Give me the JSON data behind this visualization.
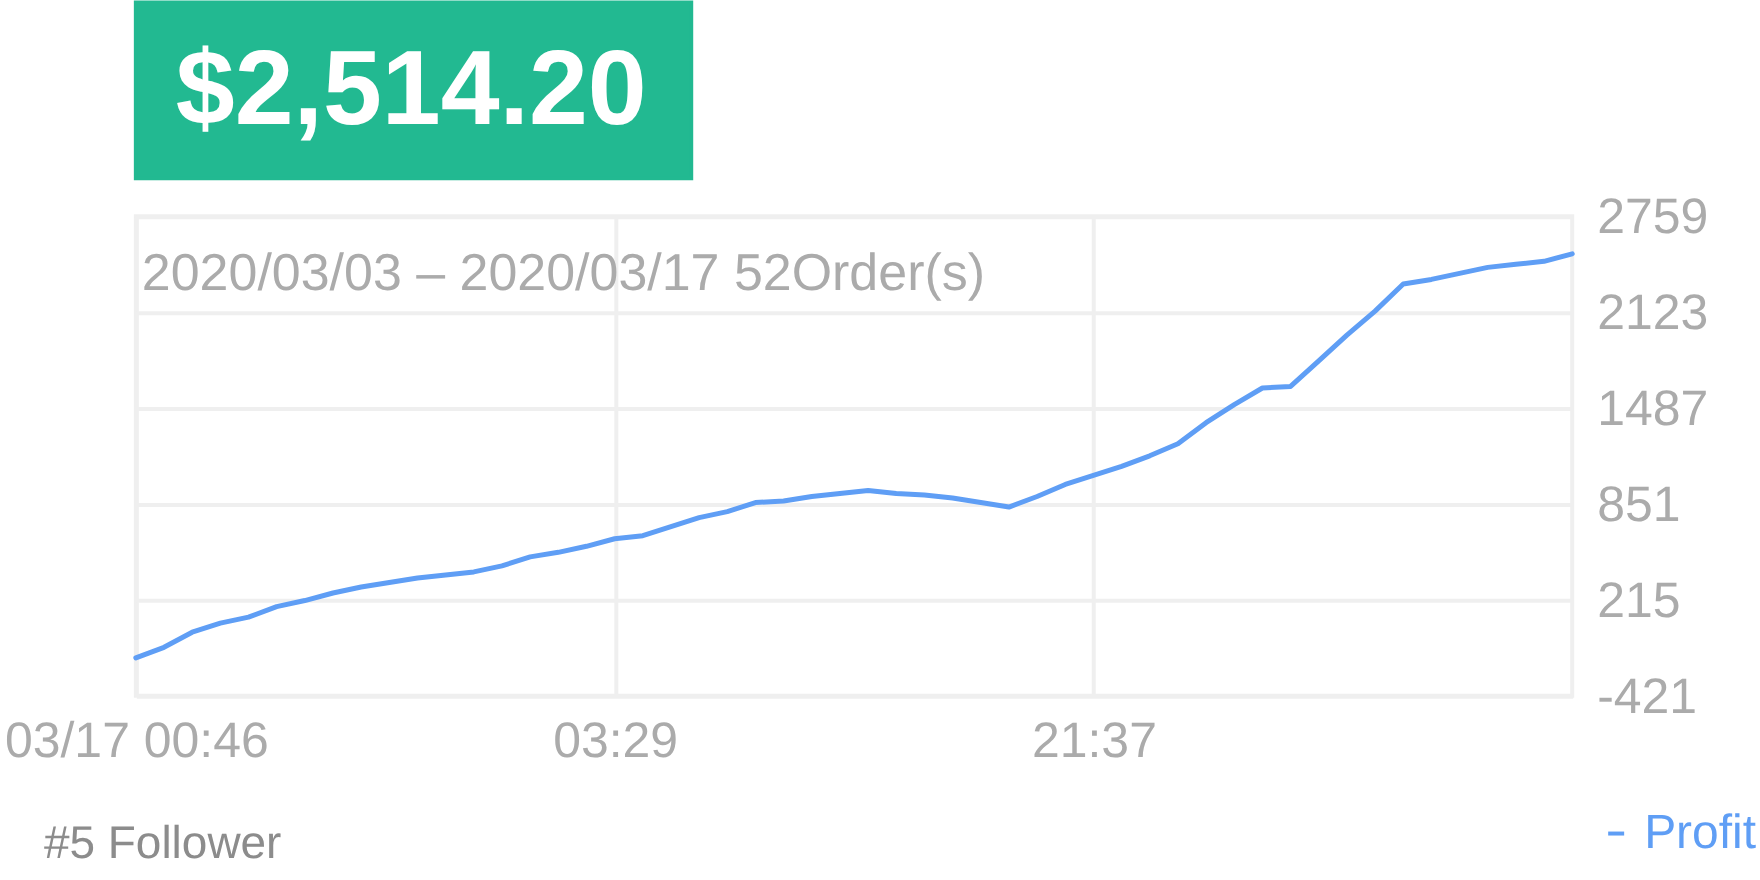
{
  "chart_data": {
    "type": "line",
    "title": "$2,514.20",
    "subtitle": "2020/03/03 – 2020/03/17 52Order(s)",
    "annotations": [
      "#5 Follower"
    ],
    "categories": [
      "03/17 00:46",
      null,
      null,
      null,
      null,
      null,
      null,
      null,
      null,
      null,
      null,
      null,
      null,
      null,
      null,
      null,
      null,
      "03:29",
      null,
      null,
      null,
      null,
      null,
      null,
      null,
      null,
      null,
      null,
      null,
      null,
      null,
      null,
      null,
      null,
      "21:37",
      null,
      null,
      null,
      null,
      null,
      null,
      null,
      null,
      null,
      null,
      null,
      null,
      null,
      null,
      null,
      null,
      null
    ],
    "series": [
      {
        "name": "Profit",
        "color": "#5f9ef5",
        "values": [
          -170,
          -100,
          0,
          60,
          100,
          170,
          210,
          260,
          300,
          330,
          360,
          380,
          400,
          440,
          500,
          530,
          570,
          620,
          640,
          700,
          760,
          800,
          860,
          870,
          900,
          920,
          940,
          920,
          910,
          890,
          860,
          830,
          900,
          980,
          1040,
          1100,
          1170,
          1250,
          1390,
          1510,
          1620,
          1630,
          1800,
          1970,
          2130,
          2310,
          2340,
          2380,
          2420,
          2440,
          2460,
          2510
        ]
      }
    ],
    "ylim": [
      -421,
      2759
    ],
    "yticks": [
      -421,
      215,
      851,
      1487,
      2123,
      2759
    ],
    "grid": true,
    "legend": "bottom right"
  }
}
